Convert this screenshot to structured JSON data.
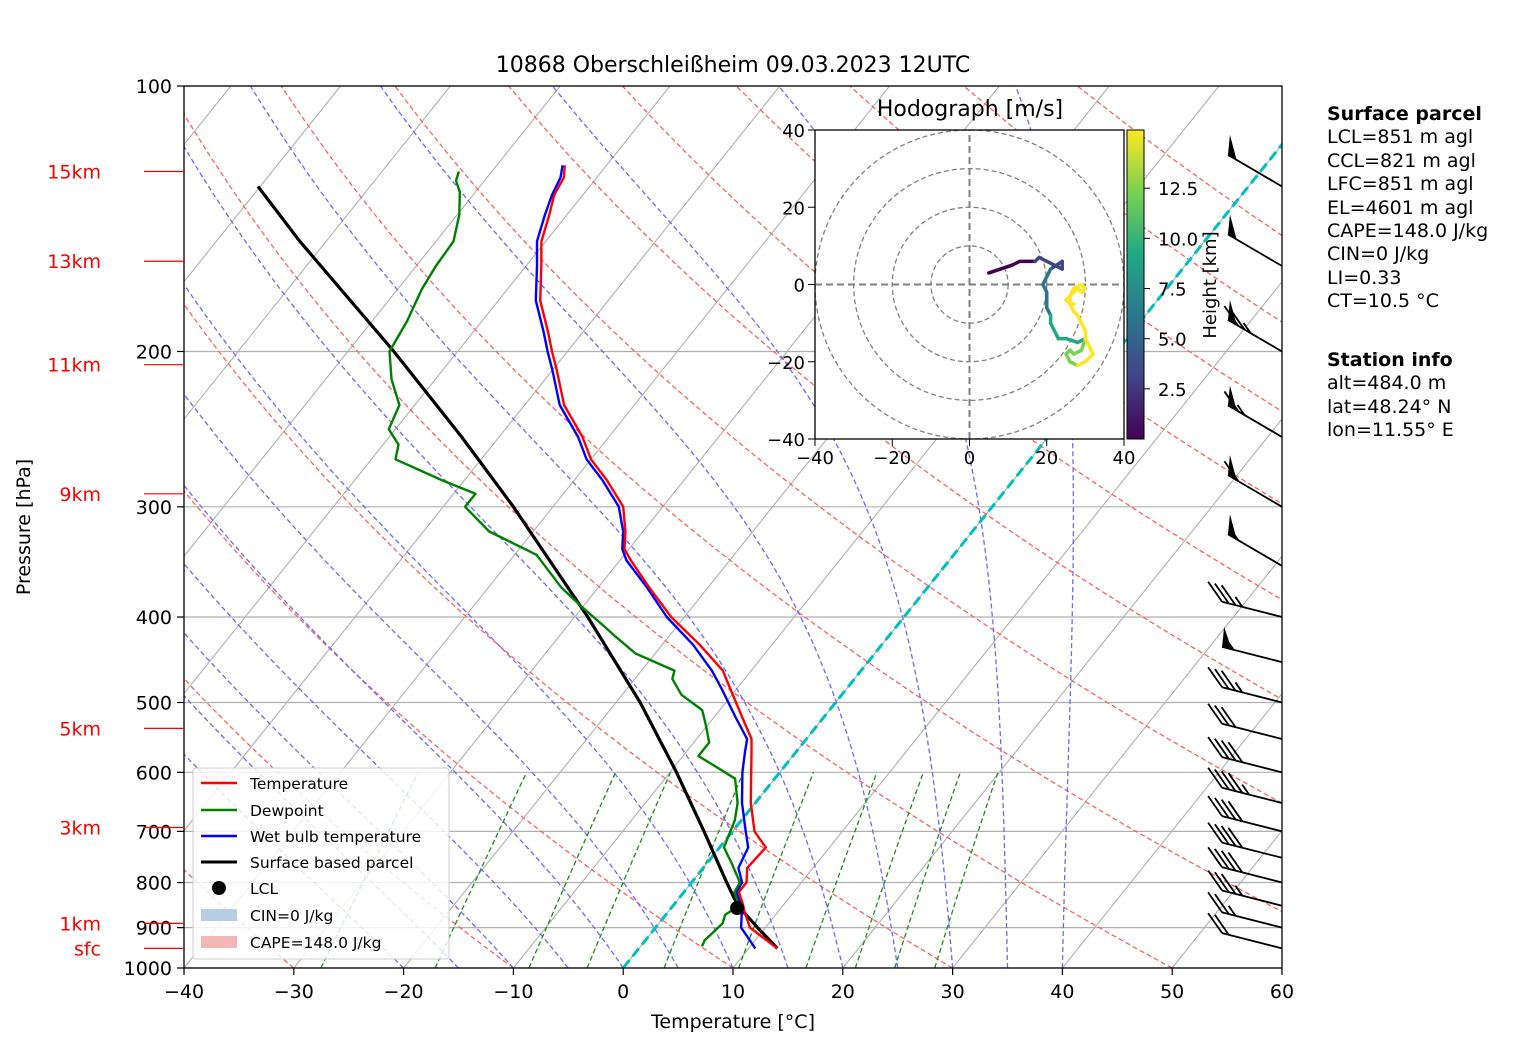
{
  "chart_data": {
    "type": "skew-t log-p",
    "title": "10868 Oberschleißheim 09.03.2023 12UTC",
    "xlabel": "Temperature [°C]",
    "ylabel": "Pressure [hPa]",
    "xlim": [
      -40,
      60
    ],
    "ylim_hPa": [
      1000,
      100
    ],
    "y_scale": "log",
    "grid": true,
    "x_ticks": [
      "−40",
      "−30",
      "−20",
      "−10",
      "0",
      "10",
      "20",
      "30",
      "40",
      "50",
      "60"
    ],
    "y_ticks": [
      "100",
      "200",
      "300",
      "400",
      "500",
      "600",
      "700",
      "800",
      "900",
      "1000"
    ],
    "height_markers": [
      {
        "label": "15km",
        "p": 125
      },
      {
        "label": "13km",
        "p": 158
      },
      {
        "label": "11km",
        "p": 207
      },
      {
        "label": "9km",
        "p": 290
      },
      {
        "label": "5km",
        "p": 535
      },
      {
        "label": "3km",
        "p": 693
      },
      {
        "label": "1km",
        "p": 890
      },
      {
        "label": "sfc",
        "p": 950
      }
    ],
    "legend": {
      "placement": "lower-left",
      "entries": [
        "Temperature",
        "Dewpoint",
        "Wet bulb temperature",
        "Surface based parcel",
        "LCL",
        "CIN=0 J/kg",
        "CAPE=148.0 J/kg"
      ]
    },
    "series": [
      {
        "name": "Temperature",
        "color": "#ff0000",
        "points": [
          [
            950,
            12.6
          ],
          [
            900,
            8.6
          ],
          [
            860,
            6.8
          ],
          [
            850,
            6.4
          ],
          [
            820,
            5.0
          ],
          [
            800,
            5.0
          ],
          [
            770,
            4.0
          ],
          [
            730,
            4.2
          ],
          [
            700,
            2.0
          ],
          [
            650,
            -0.4
          ],
          [
            600,
            -2.6
          ],
          [
            570,
            -4.0
          ],
          [
            550,
            -5.0
          ],
          [
            520,
            -7.4
          ],
          [
            480,
            -10.8
          ],
          [
            460,
            -12.6
          ],
          [
            430,
            -16.6
          ],
          [
            400,
            -21.2
          ],
          [
            370,
            -25.4
          ],
          [
            345,
            -29.0
          ],
          [
            335,
            -30.4
          ],
          [
            320,
            -31.6
          ],
          [
            300,
            -33.6
          ],
          [
            280,
            -37.0
          ],
          [
            265,
            -40.0
          ],
          [
            250,
            -42.4
          ],
          [
            230,
            -46.4
          ],
          [
            210,
            -49.6
          ],
          [
            200,
            -51.4
          ],
          [
            190,
            -53.2
          ],
          [
            175,
            -56.2
          ],
          [
            160,
            -58.6
          ],
          [
            150,
            -60.4
          ],
          [
            140,
            -61.6
          ],
          [
            133,
            -62.6
          ],
          [
            127,
            -63.0
          ],
          [
            123,
            -63.8
          ]
        ]
      },
      {
        "name": "Dewpoint",
        "color": "#008000",
        "points": [
          [
            945,
            5.6
          ],
          [
            930,
            5.4
          ],
          [
            910,
            5.6
          ],
          [
            890,
            5.8
          ],
          [
            870,
            5.4
          ],
          [
            850,
            6.0
          ],
          [
            820,
            4.6
          ],
          [
            800,
            4.4
          ],
          [
            760,
            2.2
          ],
          [
            730,
            0.4
          ],
          [
            700,
            -0.2
          ],
          [
            680,
            -0.6
          ],
          [
            650,
            -1.6
          ],
          [
            610,
            -3.6
          ],
          [
            590,
            -6.4
          ],
          [
            575,
            -8.6
          ],
          [
            555,
            -8.6
          ],
          [
            530,
            -10.2
          ],
          [
            510,
            -11.6
          ],
          [
            490,
            -14.6
          ],
          [
            470,
            -16.6
          ],
          [
            460,
            -17.0
          ],
          [
            440,
            -21.8
          ],
          [
            420,
            -25.0
          ],
          [
            410,
            -26.6
          ],
          [
            390,
            -30.0
          ],
          [
            370,
            -33.4
          ],
          [
            340,
            -38.0
          ],
          [
            320,
            -44.0
          ],
          [
            300,
            -48.0
          ],
          [
            290,
            -48.0
          ],
          [
            280,
            -52.0
          ],
          [
            265,
            -57.8
          ],
          [
            255,
            -58.6
          ],
          [
            245,
            -60.6
          ],
          [
            230,
            -61.4
          ],
          [
            215,
            -64.0
          ],
          [
            200,
            -66.2
          ],
          [
            185,
            -66.8
          ],
          [
            170,
            -67.8
          ],
          [
            160,
            -68.2
          ],
          [
            150,
            -68.4
          ],
          [
            140,
            -69.8
          ],
          [
            132,
            -71.4
          ],
          [
            128,
            -72.6
          ],
          [
            125,
            -73.0
          ]
        ]
      },
      {
        "name": "Wet bulb temperature",
        "color": "#0000ff",
        "points": [
          [
            950,
            10.6
          ],
          [
            900,
            7.8
          ],
          [
            860,
            6.6
          ],
          [
            850,
            6.2
          ],
          [
            820,
            4.8
          ],
          [
            800,
            4.6
          ],
          [
            770,
            3.2
          ],
          [
            730,
            2.6
          ],
          [
            700,
            1.2
          ],
          [
            650,
            -1.2
          ],
          [
            600,
            -3.4
          ],
          [
            570,
            -4.6
          ],
          [
            550,
            -5.4
          ],
          [
            520,
            -8.0
          ],
          [
            480,
            -11.6
          ],
          [
            460,
            -13.6
          ],
          [
            430,
            -17.2
          ],
          [
            400,
            -21.6
          ],
          [
            370,
            -25.6
          ],
          [
            345,
            -29.4
          ],
          [
            335,
            -30.6
          ],
          [
            320,
            -31.8
          ],
          [
            300,
            -34.0
          ],
          [
            280,
            -37.4
          ],
          [
            265,
            -40.4
          ],
          [
            250,
            -42.8
          ],
          [
            230,
            -46.8
          ],
          [
            210,
            -50.0
          ],
          [
            200,
            -51.8
          ],
          [
            190,
            -53.6
          ],
          [
            175,
            -56.6
          ],
          [
            160,
            -59.0
          ],
          [
            150,
            -60.8
          ],
          [
            140,
            -62.0
          ],
          [
            133,
            -62.8
          ],
          [
            127,
            -63.3
          ],
          [
            123,
            -64.0
          ]
        ]
      },
      {
        "name": "Surface based parcel",
        "color": "#000000",
        "points": [
          [
            950,
            12.6
          ],
          [
            900,
            9.3
          ],
          [
            850,
            5.9
          ],
          [
            800,
            3.2
          ],
          [
            700,
            -2.6
          ],
          [
            600,
            -9.4
          ],
          [
            500,
            -17.8
          ],
          [
            400,
            -28.8
          ],
          [
            300,
            -43.6
          ],
          [
            250,
            -53.4
          ],
          [
            200,
            -65.8
          ],
          [
            150,
            -82.4
          ],
          [
            130,
            -90.2
          ]
        ]
      }
    ],
    "lcl": {
      "p": 855,
      "t": 6.0
    },
    "cin_label": "CIN=0 J/kg",
    "cape_label": "CAPE=148.0 J/kg",
    "wind_barbs": [
      {
        "p": 950,
        "speed_kt": 20
      },
      {
        "p": 900,
        "speed_kt": 25
      },
      {
        "p": 850,
        "speed_kt": 35
      },
      {
        "p": 800,
        "speed_kt": 40
      },
      {
        "p": 750,
        "speed_kt": 40
      },
      {
        "p": 700,
        "speed_kt": 40
      },
      {
        "p": 650,
        "speed_kt": 45
      },
      {
        "p": 600,
        "speed_kt": 40
      },
      {
        "p": 550,
        "speed_kt": 30
      },
      {
        "p": 500,
        "speed_kt": 35
      },
      {
        "p": 450,
        "speed_kt": 55
      },
      {
        "p": 400,
        "speed_kt": 35
      },
      {
        "p": 350,
        "speed_kt": 55
      },
      {
        "p": 300,
        "speed_kt": 60
      },
      {
        "p": 250,
        "speed_kt": 65
      },
      {
        "p": 200,
        "speed_kt": 75
      },
      {
        "p": 160,
        "speed_kt": 50
      },
      {
        "p": 130,
        "speed_kt": 50
      }
    ],
    "hodograph": {
      "title": "Hodograph [m/s]",
      "xlim": [
        -40,
        40
      ],
      "ylim": [
        -40,
        40
      ],
      "x_ticks": [
        "−40",
        "−20",
        "0",
        "20",
        "40"
      ],
      "y_ticks": [
        "40",
        "20",
        "0",
        "−20",
        "−40"
      ],
      "rings_ms": [
        10,
        20,
        30,
        40
      ],
      "colorbar_label": "Height [km]",
      "colorbar_ticks": [
        "2.5",
        "5.0",
        "7.5",
        "10.0",
        "12.5"
      ],
      "trace": [
        [
          5,
          3
        ],
        [
          8,
          4
        ],
        [
          11,
          5
        ],
        [
          13,
          6
        ],
        [
          15,
          6
        ],
        [
          17,
          6
        ],
        [
          18,
          7
        ],
        [
          20,
          6
        ],
        [
          22,
          5
        ],
        [
          24,
          4
        ],
        [
          24,
          6
        ],
        [
          21,
          4
        ],
        [
          20,
          2
        ],
        [
          19,
          0
        ],
        [
          20,
          -2
        ],
        [
          20,
          -4
        ],
        [
          20,
          -6
        ],
        [
          21,
          -8
        ],
        [
          21,
          -10
        ],
        [
          22,
          -12
        ],
        [
          23,
          -14
        ],
        [
          25,
          -14
        ],
        [
          28,
          -15
        ],
        [
          30,
          -14
        ],
        [
          29,
          -17
        ],
        [
          27,
          -18
        ],
        [
          26,
          -17
        ],
        [
          25,
          -18
        ],
        [
          26,
          -20
        ],
        [
          28,
          -21
        ],
        [
          30,
          -20
        ],
        [
          31,
          -19
        ],
        [
          32,
          -18
        ],
        [
          31,
          -16
        ],
        [
          30,
          -14
        ],
        [
          30,
          -12
        ],
        [
          29,
          -10
        ],
        [
          28,
          -8
        ],
        [
          27,
          -7
        ],
        [
          26,
          -5
        ],
        [
          26,
          -3
        ],
        [
          27,
          -2
        ],
        [
          28,
          -1
        ],
        [
          29,
          -2
        ],
        [
          30,
          -1
        ],
        [
          29,
          0
        ],
        [
          27,
          -1
        ],
        [
          26,
          -3
        ],
        [
          25,
          -4
        ],
        [
          26,
          -5
        ],
        [
          27,
          -5
        ]
      ],
      "trace_heights_km": [
        0.5,
        1,
        1.5,
        2,
        2.5,
        3,
        3.5,
        4,
        4.5,
        5,
        5.5,
        6,
        6.5,
        7,
        7.5,
        8,
        8.5,
        9,
        9.5,
        10,
        10.5,
        11,
        11.5,
        12,
        12.5,
        13,
        13.5,
        14,
        14.5,
        15,
        15.5,
        16,
        16.5,
        17,
        17.5,
        18,
        18.5,
        19,
        19.5,
        20,
        20.5,
        21,
        21.5,
        22,
        22.5,
        23,
        23.5,
        24,
        24.5,
        25,
        25.5
      ]
    }
  },
  "side_panel": {
    "surface_parcel": {
      "heading": "Surface parcel",
      "lines": [
        "LCL=851 m agl",
        "CCL=821 m agl",
        "LFC=851 m agl",
        "EL=4601 m agl",
        "CAPE=148.0 J/kg",
        "CIN=0 J/kg",
        "LI=0.33",
        "CT=10.5 °C"
      ]
    },
    "station_info": {
      "heading": "Station info",
      "lines": [
        "alt=484.0 m",
        "lat=48.24° N",
        "lon=11.55° E"
      ]
    }
  },
  "colors": {
    "temperature": "#ff0000",
    "dewpoint": "#008000",
    "wetbulb": "#0000ff",
    "parcel": "#000000",
    "dry_adiabats": "#ff6060",
    "moist_adiabats": "#6a6aff",
    "mixing_ratio": "#1a8f1a",
    "isotherm_zero": "#00bfbf",
    "cape_fill": "#f4b6b6",
    "cin_fill": "#b7cde4"
  }
}
